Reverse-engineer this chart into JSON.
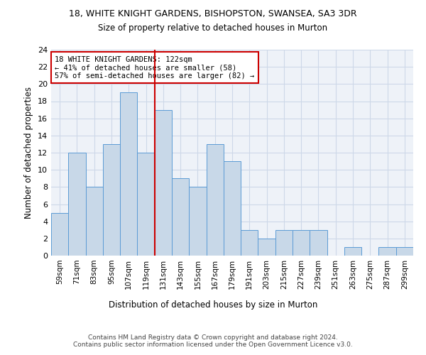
{
  "title1": "18, WHITE KNIGHT GARDENS, BISHOPSTON, SWANSEA, SA3 3DR",
  "title2": "Size of property relative to detached houses in Murton",
  "xlabel": "Distribution of detached houses by size in Murton",
  "ylabel": "Number of detached properties",
  "categories": [
    "59sqm",
    "71sqm",
    "83sqm",
    "95sqm",
    "107sqm",
    "119sqm",
    "131sqm",
    "143sqm",
    "155sqm",
    "167sqm",
    "179sqm",
    "191sqm",
    "203sqm",
    "215sqm",
    "227sqm",
    "239sqm",
    "251sqm",
    "263sqm",
    "275sqm",
    "287sqm",
    "299sqm"
  ],
  "values": [
    5,
    12,
    8,
    13,
    19,
    12,
    17,
    9,
    8,
    13,
    11,
    3,
    2,
    3,
    3,
    3,
    0,
    1,
    0,
    1,
    1
  ],
  "bar_color": "#c8d8e8",
  "bar_edge_color": "#5b9bd5",
  "vline_x": 5.5,
  "vline_color": "#cc0000",
  "annotation_text": "18 WHITE KNIGHT GARDENS: 122sqm\n← 41% of detached houses are smaller (58)\n57% of semi-detached houses are larger (82) →",
  "annotation_box_color": "#ffffff",
  "annotation_box_edge": "#cc0000",
  "ylim": [
    0,
    24
  ],
  "yticks": [
    0,
    2,
    4,
    6,
    8,
    10,
    12,
    14,
    16,
    18,
    20,
    22,
    24
  ],
  "footer": "Contains HM Land Registry data © Crown copyright and database right 2024.\nContains public sector information licensed under the Open Government Licence v3.0.",
  "grid_color": "#cdd8e8",
  "background_color": "#eef2f8"
}
